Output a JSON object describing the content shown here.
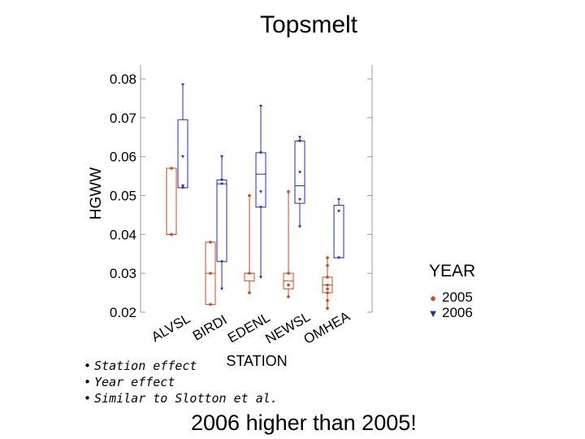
{
  "slide": {
    "title": "Topsmelt",
    "bullets": [
      "Station effect",
      "Year effect",
      "Similar to Slotton et al."
    ],
    "conclusion": "2006 higher than 2005!"
  },
  "chart_data": {
    "type": "box",
    "ylabel": "HGWW",
    "xlabel": "STATION",
    "ylim": [
      0.02,
      0.08
    ],
    "yticks": [
      "0.08",
      "0.07",
      "0.06",
      "0.05",
      "0.04",
      "0.03",
      "0.02"
    ],
    "ytick_values": [
      0.08,
      0.07,
      0.06,
      0.05,
      0.04,
      0.03,
      0.02
    ],
    "categories": [
      "ALVSL",
      "BIRDI",
      "EDENL",
      "NEWSL",
      "OMHEA"
    ],
    "legend": {
      "title": "YEAR",
      "position": "right"
    },
    "series": [
      {
        "name": "2005",
        "color": "#cc4a1e",
        "marker": "circle",
        "boxes": [
          {
            "category": "ALVSL",
            "min": 0.04,
            "q1": 0.04,
            "median": 0.04,
            "q3": 0.057,
            "max": 0.057,
            "points": [
              0.04,
              0.057
            ]
          },
          {
            "category": "BIRDI",
            "min": 0.022,
            "q1": 0.022,
            "median": 0.03,
            "q3": 0.038,
            "max": 0.038,
            "points": [
              0.022,
              0.03,
              0.038
            ]
          },
          {
            "category": "EDENL",
            "min": 0.025,
            "q1": 0.028,
            "median": 0.03,
            "q3": 0.03,
            "max": 0.05,
            "points": [
              0.025,
              0.03,
              0.05
            ]
          },
          {
            "category": "NEWSL",
            "min": 0.024,
            "q1": 0.026,
            "median": 0.028,
            "q3": 0.03,
            "max": 0.051,
            "points": [
              0.024,
              0.027,
              0.03,
              0.051
            ]
          },
          {
            "category": "OMHEA",
            "min": 0.021,
            "q1": 0.025,
            "median": 0.027,
            "q3": 0.029,
            "max": 0.034,
            "points": [
              0.021,
              0.023,
              0.025,
              0.026,
              0.027,
              0.029,
              0.032,
              0.034
            ]
          }
        ]
      },
      {
        "name": "2006",
        "color": "#1f2fa0",
        "marker": "triangle-down",
        "boxes": [
          {
            "category": "ALVSL",
            "min": 0.052,
            "q1": 0.052,
            "median": 0.052,
            "q3": 0.0695,
            "max": 0.0785,
            "points": [
              0.052,
              0.0525,
              0.06,
              0.0785
            ]
          },
          {
            "category": "BIRDI",
            "min": 0.026,
            "q1": 0.033,
            "median": 0.053,
            "q3": 0.054,
            "max": 0.06,
            "points": [
              0.026,
              0.033,
              0.053,
              0.054,
              0.06
            ]
          },
          {
            "category": "EDENL",
            "min": 0.029,
            "q1": 0.047,
            "median": 0.0555,
            "q3": 0.061,
            "max": 0.073,
            "points": [
              0.029,
              0.047,
              0.051,
              0.061,
              0.073
            ]
          },
          {
            "category": "NEWSL",
            "min": 0.042,
            "q1": 0.048,
            "median": 0.0525,
            "q3": 0.064,
            "max": 0.065,
            "points": [
              0.042,
              0.049,
              0.056,
              0.064,
              0.065
            ]
          },
          {
            "category": "OMHEA",
            "min": 0.034,
            "q1": 0.034,
            "median": 0.034,
            "q3": 0.0475,
            "max": 0.049,
            "points": [
              0.034,
              0.046,
              0.049
            ]
          }
        ]
      }
    ]
  }
}
